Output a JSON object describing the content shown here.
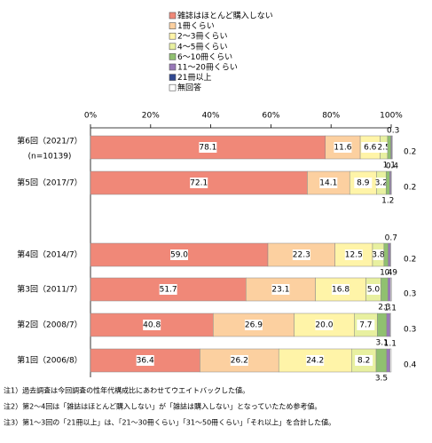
{
  "chart_data": {
    "type": "stacked-bar-horizontal",
    "categories": [
      "第6回（2021/7）",
      "第5回（2017/7）",
      "第4回（2014/7）",
      "第3回（2011/7）",
      "第2回（2008/7）",
      "第1回（2006/8）"
    ],
    "category_notes": [
      "(n=10139)",
      null,
      null,
      null,
      null,
      null
    ],
    "xlim": [
      0,
      100
    ],
    "xticks": [
      {
        "value": 0,
        "label": "0%"
      },
      {
        "value": 20,
        "label": "20%"
      },
      {
        "value": 40,
        "label": "40%"
      },
      {
        "value": 60,
        "label": "60%"
      },
      {
        "value": 80,
        "label": "80%"
      },
      {
        "value": 100,
        "label": "100%"
      }
    ],
    "series": [
      {
        "name": "雑誌はほとんど購入しない",
        "color": "#f08878",
        "label_position": "inside",
        "values": [
          78.1,
          72.1,
          59.0,
          51.7,
          40.8,
          36.4
        ],
        "value_labels": [
          "78.1",
          "72.1",
          "59.0",
          "51.7",
          "40.8",
          "36.4"
        ]
      },
      {
        "name": "1冊くらい",
        "color": "#fcd0a0",
        "label_position": "inside",
        "values": [
          11.6,
          14.1,
          22.3,
          23.1,
          26.9,
          26.2
        ],
        "value_labels": [
          "11.6",
          "14.1",
          "22.3",
          "23.1",
          "26.9",
          "26.2"
        ]
      },
      {
        "name": "2〜3冊くらい",
        "color": "#fff4a8",
        "label_position": "inside",
        "values": [
          6.6,
          8.9,
          12.5,
          16.8,
          20.0,
          24.2
        ],
        "value_labels": [
          "6.6",
          "8.9",
          "12.5",
          "16.8",
          "20.0",
          "24.2"
        ]
      },
      {
        "name": "4〜5冊くらい",
        "color": "#e8f0a0",
        "label_position": "inside",
        "values": [
          2.5,
          3.2,
          3.8,
          5.0,
          7.7,
          8.2
        ],
        "value_labels": [
          "2.5",
          "3.2",
          "3.8",
          "5.0",
          "7.7",
          "8.2"
        ]
      },
      {
        "name": "6〜10冊くらい",
        "color": "#90c070",
        "label_position": "below",
        "values": [
          1.1,
          1.2,
          1.4,
          2.3,
          3.1,
          3.5
        ],
        "value_labels": [
          "1.1",
          "1.2",
          "1.4",
          "2.3",
          "3.1",
          "3.5"
        ]
      },
      {
        "name": "11〜20冊くらい",
        "color": "#9878b8",
        "label_position": "above",
        "values": [
          0.3,
          0.4,
          0.7,
          0.9,
          1.1,
          1.1
        ],
        "value_labels": [
          "0.3",
          "0.4",
          "0.7",
          "0.9",
          "1.1",
          "1.1"
        ]
      },
      {
        "name": "21冊以上",
        "color": "#304890",
        "label_position": "above",
        "values": [
          null,
          null,
          null,
          null,
          null,
          null
        ],
        "value_labels": [
          null,
          null,
          null,
          null,
          null,
          null
        ]
      },
      {
        "name": "無回答",
        "color": "#ffffff",
        "label_position": "right",
        "values": [
          0.2,
          0.2,
          0.2,
          0.3,
          0.3,
          0.4
        ],
        "value_labels": [
          "0.2",
          "0.2",
          "0.2",
          "0.3",
          "0.3",
          "0.4"
        ]
      }
    ],
    "notes": [
      "注1）過去調査は今回調査の性年代構成比にあわせてウエイトバックした値。",
      "注2）第2〜4回は「雑誌はほとんど購入しない」が「雑誌は購入しない」となっていたため参考値。",
      "注3）第1〜3回の「21冊以上」は、「21〜30冊くらい」「31〜50冊くらい」「それ以上」を合計した値。"
    ]
  }
}
